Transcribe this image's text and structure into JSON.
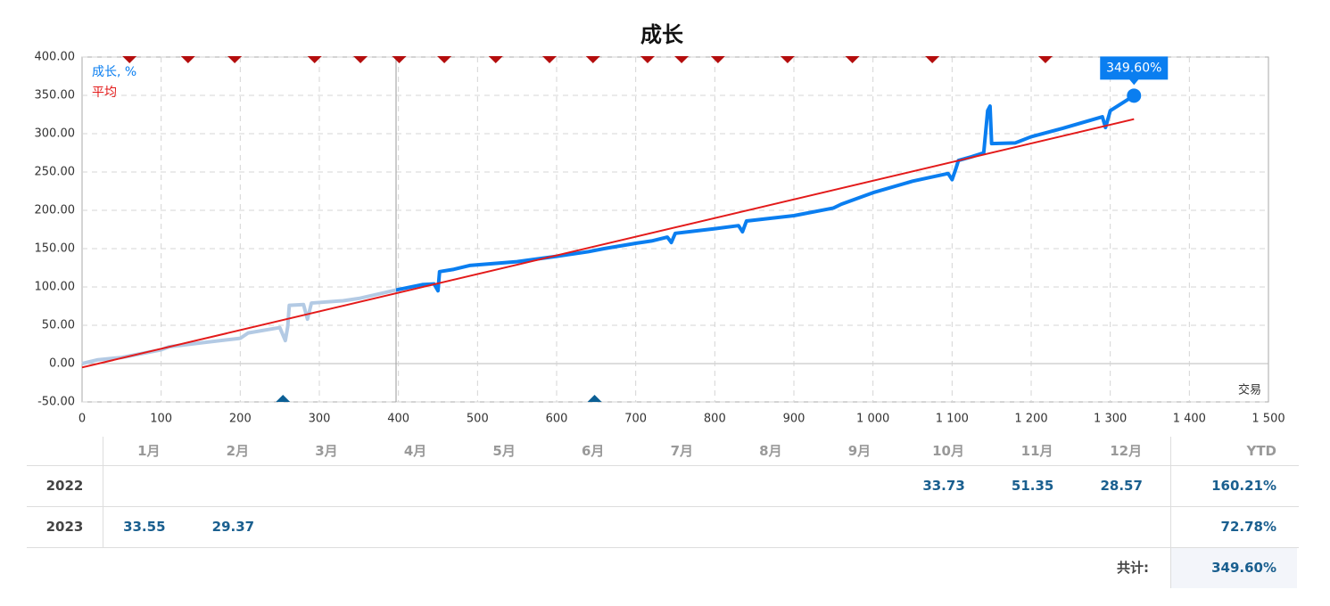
{
  "chart_data": {
    "type": "line",
    "title": "成长",
    "x_label": "交易",
    "xlim": [
      0,
      1500
    ],
    "xticks": [
      0,
      100,
      200,
      300,
      400,
      500,
      600,
      700,
      800,
      900,
      {
        "value": 1000,
        "label": "1 000"
      },
      {
        "value": 1100,
        "label": "1 100"
      },
      {
        "value": 1200,
        "label": "1 200"
      },
      {
        "value": 1300,
        "label": "1 300"
      },
      {
        "value": 1400,
        "label": "1 400"
      },
      {
        "value": 1500,
        "label": "1 500"
      }
    ],
    "ylim": [
      -50,
      400
    ],
    "yticks": [
      {
        "value": -50,
        "label": "-50.00"
      },
      {
        "value": 0,
        "label": "0.00"
      },
      {
        "value": 50,
        "label": "50.00"
      },
      {
        "value": 100,
        "label": "100.00"
      },
      {
        "value": 150,
        "label": "150.00"
      },
      {
        "value": 200,
        "label": "200.00"
      },
      {
        "value": 250,
        "label": "250.00"
      },
      {
        "value": 300,
        "label": "300.00"
      },
      {
        "value": 350,
        "label": "350.00"
      },
      {
        "value": 400,
        "label": "400.00"
      }
    ],
    "grid": true,
    "crosshair_x": 397,
    "series": [
      {
        "name": "成长, %",
        "color": "#0a7ef0",
        "faded_color": "#b3cae4",
        "x": [
          0,
          20,
          50,
          100,
          110,
          150,
          200,
          210,
          250,
          257,
          260,
          262,
          280,
          285,
          290,
          330,
          350,
          397,
          430,
          445,
          450,
          452,
          470,
          490,
          550,
          600,
          620,
          640,
          660,
          700,
          720,
          740,
          745,
          750,
          800,
          830,
          835,
          840,
          900,
          950,
          960,
          1000,
          1050,
          1095,
          1100,
          1105,
          1108,
          1125,
          1140,
          1145,
          1148,
          1150,
          1180,
          1200,
          1240,
          1290,
          1294,
          1300,
          1330
        ],
        "values": [
          0,
          5,
          8,
          18,
          22,
          27,
          33,
          40,
          47,
          30,
          48,
          76,
          77,
          58,
          79,
          82,
          85,
          96,
          103,
          104,
          95,
          120,
          123,
          128,
          133,
          140,
          143,
          146,
          150,
          157,
          160,
          165,
          158,
          170,
          176,
          180,
          172,
          186,
          193,
          203,
          208,
          223,
          238,
          248,
          240,
          255,
          265,
          270,
          275,
          330,
          336,
          287,
          288,
          296,
          307,
          322,
          308,
          330,
          349.6
        ],
        "value_labels": [
          null,
          null,
          null,
          null,
          null,
          null,
          null,
          null,
          null,
          null,
          null,
          null,
          null,
          null,
          null,
          null,
          null,
          null,
          null,
          null,
          null,
          null,
          null,
          null,
          null,
          null,
          null,
          null,
          null,
          null,
          null,
          null,
          null,
          null,
          null,
          null,
          null,
          null,
          null,
          null,
          null,
          null,
          null,
          null,
          null,
          null,
          null,
          null,
          null,
          null,
          null,
          null,
          null,
          null,
          null,
          null,
          null,
          null,
          "349.60%"
        ]
      },
      {
        "name": "平均",
        "color": "#e31a1a",
        "x": [
          0,
          1330
        ],
        "values": [
          -5,
          319
        ]
      }
    ],
    "top_markers": {
      "color": "#b40d0d",
      "x": [
        60,
        134,
        193,
        294,
        352,
        401,
        458,
        523,
        591,
        646,
        715,
        758,
        804,
        892,
        974,
        1075,
        1218
      ]
    },
    "bottom_markers": {
      "color": "#0b5f95",
      "x": [
        254,
        648
      ]
    }
  },
  "table": {
    "header": [
      "1月",
      "2月",
      "3月",
      "4月",
      "5月",
      "6月",
      "7月",
      "8月",
      "9月",
      "10月",
      "11月",
      "12月"
    ],
    "ytd_header": "YTD",
    "rows": [
      {
        "year": "2022",
        "cells": [
          null,
          null,
          null,
          null,
          null,
          null,
          null,
          null,
          null,
          "33.73",
          "51.35",
          "28.57"
        ],
        "ytd": "160.21%"
      },
      {
        "year": "2023",
        "cells": [
          "33.55",
          "29.37",
          null,
          null,
          null,
          null,
          null,
          null,
          null,
          null,
          null,
          null
        ],
        "ytd": "72.78%"
      }
    ],
    "total_label": "共计:",
    "total": "349.60%"
  }
}
